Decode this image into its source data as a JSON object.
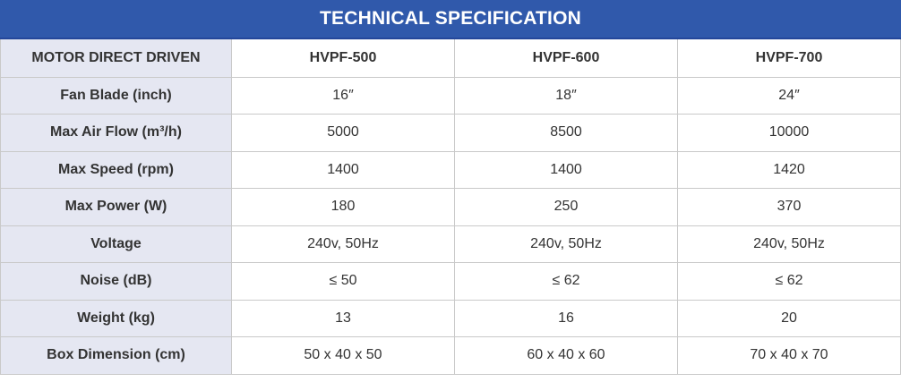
{
  "title": "TECHNICAL SPECIFICATION",
  "header": {
    "label": "MOTOR DIRECT DRIVEN",
    "models": [
      "HVPF-500",
      "HVPF-600",
      "HVPF-700"
    ]
  },
  "rows": [
    {
      "label": "Fan Blade (inch)",
      "values": [
        "16″",
        "18″",
        "24″"
      ]
    },
    {
      "label": "Max Air Flow (m³/h)",
      "values": [
        "5000",
        "8500",
        "10000"
      ]
    },
    {
      "label": "Max Speed (rpm)",
      "values": [
        "1400",
        "1400",
        "1420"
      ]
    },
    {
      "label": "Max Power (W)",
      "values": [
        "180",
        "250",
        "370"
      ]
    },
    {
      "label": "Voltage",
      "values": [
        "240v, 50Hz",
        "240v, 50Hz",
        "240v, 50Hz"
      ]
    },
    {
      "label": "Noise (dB)",
      "values": [
        "≤ 50",
        "≤ 62",
        "≤ 62"
      ]
    },
    {
      "label": "Weight (kg)",
      "values": [
        "13",
        "16",
        "20"
      ]
    },
    {
      "label": "Box Dimension (cm)",
      "values": [
        "50 x 40 x 50",
        "60 x 40 x 60",
        "70 x 40 x 70"
      ]
    }
  ],
  "colors": {
    "title_background": "#3059ab",
    "label_column_background": "#e5e7f2",
    "header_label_red": "#e01a1e"
  }
}
